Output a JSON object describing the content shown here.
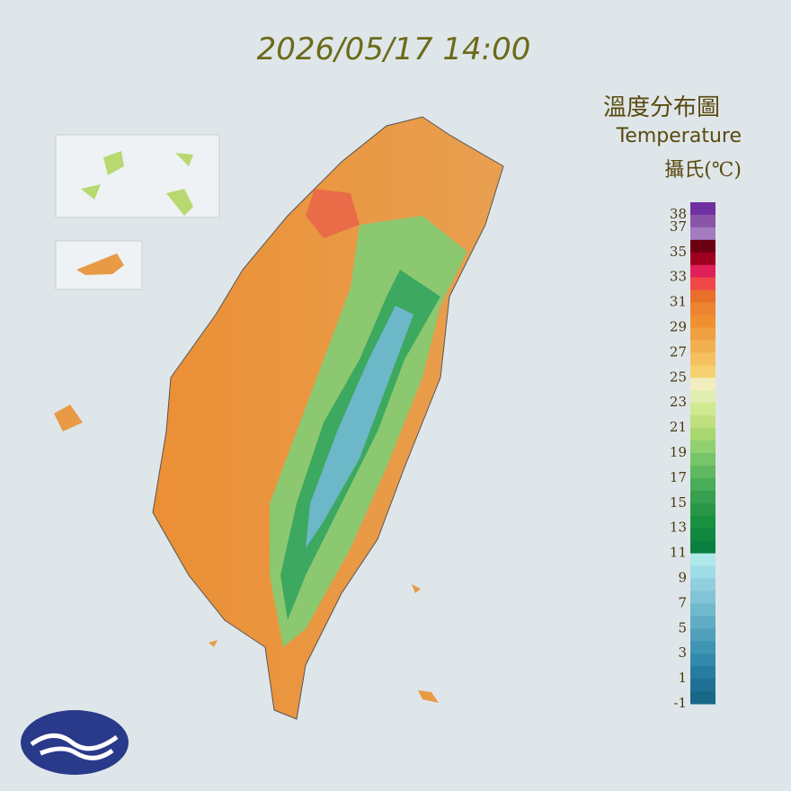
{
  "header": {
    "timestamp": "2026/05/17 14:00"
  },
  "legend": {
    "title": "溫度分布圖",
    "subtitle": "Temperature",
    "unit": "攝氏(℃)",
    "lim": [
      -1,
      39
    ],
    "ticks": [
      38,
      37,
      35,
      33,
      31,
      29,
      27,
      25,
      23,
      21,
      19,
      17,
      15,
      13,
      11,
      9,
      7,
      5,
      3,
      1,
      -1
    ],
    "colors": [
      "#7030a0",
      "#8a55a8",
      "#a37cc0",
      "#6b0010",
      "#a00020",
      "#e0205a",
      "#f04848",
      "#e8702a",
      "#ec8430",
      "#f09030",
      "#f0a040",
      "#f3b050",
      "#f5c060",
      "#f6d070",
      "#f2eec0",
      "#e0eeb0",
      "#d0ea90",
      "#c0e080",
      "#a8d870",
      "#90d070",
      "#78c468",
      "#60b860",
      "#48ac58",
      "#38a050",
      "#289848",
      "#189040",
      "#108840",
      "#0a8040",
      "#b0e8ec",
      "#a0dce6",
      "#90d0de",
      "#80c4d6",
      "#70b8cc",
      "#60acc4",
      "#50a0bc",
      "#4094b4",
      "#3488aa",
      "#287ca0",
      "#207096",
      "#186888"
    ]
  }
}
